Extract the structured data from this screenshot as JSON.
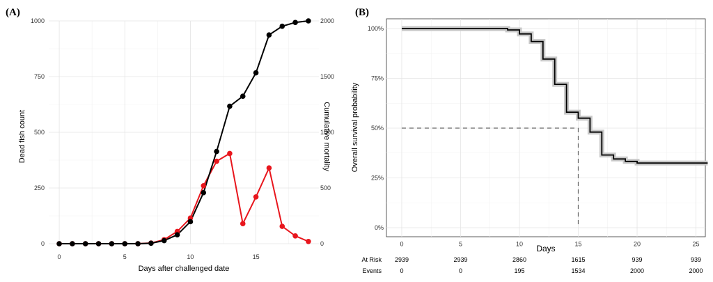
{
  "chart_data": [
    {
      "type": "line",
      "panel_label": "(A)",
      "xlabel": "Days after challenged date",
      "ylabel_left": "Dead fish count",
      "ylabel_right": "Cumulative mortality",
      "xlim": [
        -0.8,
        19.8
      ],
      "ylim_left": [
        0,
        1000
      ],
      "ylim_right": [
        0,
        2000
      ],
      "x_ticks": [
        "0",
        "5",
        "10",
        "15"
      ],
      "y_left_ticks": [
        "0",
        "250",
        "500",
        "750",
        "1000"
      ],
      "y_right_ticks": [
        "0",
        "500",
        "1000",
        "1500",
        "2000"
      ],
      "grid": true,
      "colors": {
        "dead": "#e8161d",
        "cumulative": "#000000",
        "left_label": "#e8161d"
      },
      "series": [
        {
          "axis": "left",
          "x": [
            0,
            1,
            2,
            3,
            4,
            5,
            6,
            7,
            8,
            9,
            10,
            11,
            12,
            13,
            14,
            15,
            16,
            17,
            18,
            19
          ],
          "values": [
            0,
            0,
            0,
            0,
            0,
            0,
            0,
            3,
            18,
            55,
            115,
            260,
            370,
            405,
            90,
            210,
            340,
            78,
            35,
            10
          ]
        },
        {
          "axis": "right",
          "x": [
            0,
            1,
            2,
            3,
            4,
            5,
            6,
            7,
            8,
            9,
            10,
            11,
            12,
            13,
            14,
            15,
            16,
            17,
            18,
            19
          ],
          "values": [
            0,
            0,
            0,
            0,
            0,
            0,
            0,
            4,
            28,
            80,
            198,
            458,
            828,
            1234,
            1324,
            1534,
            1874,
            1952,
            1986,
            2000
          ]
        }
      ]
    },
    {
      "type": "line",
      "panel_label": "(B)",
      "xlabel": "Days",
      "ylabel": "Overall survival probability",
      "xlim": [
        -1.3,
        25.8
      ],
      "ylim": [
        0,
        1
      ],
      "x_ticks": [
        "0",
        "5",
        "10",
        "15",
        "20",
        "25"
      ],
      "y_ticks": [
        "0%",
        "25%",
        "50%",
        "75%",
        "100%"
      ],
      "grid": true,
      "median_survival": {
        "x": 15,
        "y": 0.5
      },
      "colors": {
        "curve": "#000000",
        "ci_band": "#c8c8c8",
        "median_line": "#666666"
      },
      "series": [
        {
          "x": [
            0,
            8,
            9,
            10,
            11,
            12,
            13,
            14,
            15,
            16,
            17,
            18,
            19,
            20,
            26
          ],
          "values": [
            1.0,
            1.0,
            0.993,
            0.973,
            0.935,
            0.847,
            0.72,
            0.58,
            0.55,
            0.48,
            0.365,
            0.345,
            0.333,
            0.325,
            0.325
          ]
        }
      ],
      "risk_table": {
        "at_risk_label": "At Risk",
        "events_label": "Events",
        "times": [
          0,
          5,
          10,
          15,
          20,
          25
        ],
        "at_risk": [
          "2939",
          "2939",
          "2860",
          "1615",
          "939",
          "939"
        ],
        "events": [
          "0",
          "0",
          "195",
          "1534",
          "2000",
          "2000"
        ]
      }
    }
  ]
}
